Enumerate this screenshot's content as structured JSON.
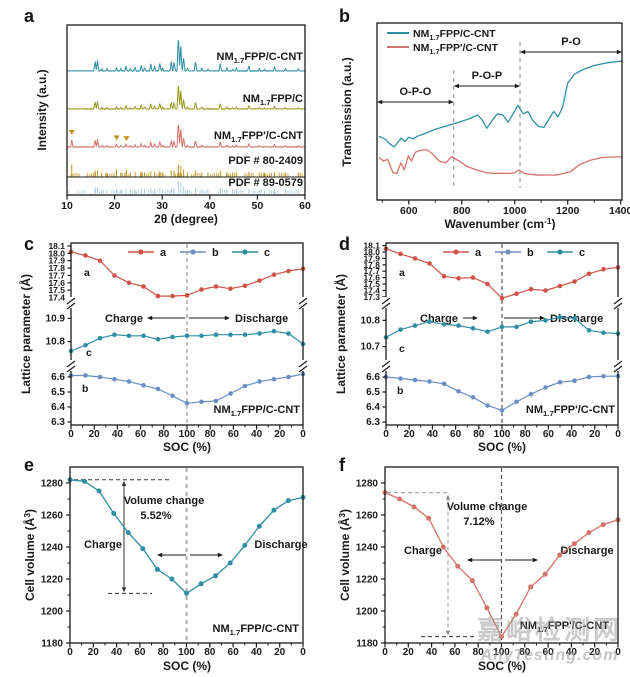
{
  "figure": {
    "panel_letters": [
      "a",
      "b",
      "c",
      "d",
      "e",
      "f"
    ],
    "watermark": {
      "line1": "嘉峪检测网",
      "line2": "AnyTesting.com"
    }
  },
  "colors": {
    "teal": "#2e8fa4",
    "teal_label": "#1b9ab0",
    "olive": "#9a9a21",
    "salmon": "#d4736b",
    "red": "#cf5349",
    "blue": "#6b8fc3",
    "gold": "#c3941c",
    "lightblue": "#aacbdd",
    "axis": "#1a1a1a",
    "gray_dash": "#999999",
    "black_dash": "#333333"
  },
  "chart_data": [
    {
      "id": "a",
      "type": "line",
      "variant": "xrd",
      "xlabel": "2θ (degree)",
      "ylabel": "Intensity (a.u.)",
      "xlim": [
        10,
        60
      ],
      "xticks": [
        10,
        20,
        30,
        40,
        50,
        60
      ],
      "traces": [
        {
          "label": "NM_{1.7}FPP/C-CNT",
          "color": "teal"
        },
        {
          "label": "NM_{1.7}FPP/C",
          "color": "olive"
        },
        {
          "label": "NM_{1.7}FPP'/C-CNT",
          "color": "salmon"
        }
      ],
      "impurity_peaks": [
        [
          11.0,
          0.5
        ],
        [
          20.4,
          0.2
        ],
        [
          22.5,
          0.16
        ]
      ],
      "peaks": [
        [
          15.9,
          0.3
        ],
        [
          16.4,
          0.32
        ],
        [
          17.3,
          0.1
        ],
        [
          18.4,
          0.1
        ],
        [
          20.4,
          0.12
        ],
        [
          21.3,
          0.1
        ],
        [
          22.4,
          0.16
        ],
        [
          23.3,
          0.1
        ],
        [
          24.3,
          0.14
        ],
        [
          25.6,
          0.18
        ],
        [
          26.3,
          0.12
        ],
        [
          27.6,
          0.22
        ],
        [
          28.4,
          0.16
        ],
        [
          29.5,
          0.25
        ],
        [
          30.1,
          0.12
        ],
        [
          31.9,
          0.3
        ],
        [
          32.5,
          0.28
        ],
        [
          33.4,
          1.0
        ],
        [
          33.9,
          0.75
        ],
        [
          34.5,
          0.4
        ],
        [
          35.3,
          0.12
        ],
        [
          37.0,
          0.3
        ],
        [
          38.3,
          0.12
        ],
        [
          39.6,
          0.08
        ],
        [
          42.2,
          0.25
        ],
        [
          43.6,
          0.12
        ],
        [
          44.8,
          0.08
        ],
        [
          45.6,
          0.12
        ],
        [
          48.2,
          0.18
        ],
        [
          50.4,
          0.1
        ],
        [
          51.5,
          0.08
        ],
        [
          53.6,
          0.14
        ],
        [
          55.9,
          0.1
        ],
        [
          58.6,
          0.1
        ]
      ],
      "references": [
        {
          "label": "PDF # 80-2409",
          "color": "gold"
        },
        {
          "label": "PDF # 89-0579",
          "color": "lightblue"
        }
      ]
    },
    {
      "id": "b",
      "type": "line",
      "variant": "ftir",
      "xlabel": "Wavenumber (cm^{-1})",
      "ylabel": "Transmission (a.u.)",
      "xlim": [
        480,
        1405
      ],
      "xticks": [
        600,
        800,
        1000,
        1200,
        1400
      ],
      "xticks_minor": [
        500,
        700,
        900,
        1100,
        1300
      ],
      "dividers": [
        770,
        1020
      ],
      "regions": [
        {
          "label": "O-P-O",
          "from": 480,
          "to": 770,
          "y": 102,
          "label_y": 95
        },
        {
          "label": "P-O-P",
          "from": 770,
          "to": 1020,
          "y": 86,
          "label_y": 79
        },
        {
          "label": "P-O",
          "from": 1020,
          "to": 1405,
          "y": 52,
          "label_y": 45
        }
      ],
      "series": [
        {
          "name": "NM_{1.7}FPP/C-CNT",
          "color": "teal",
          "points": [
            [
              487,
              0.36
            ],
            [
              510,
              0.345
            ],
            [
              530,
              0.315
            ],
            [
              545,
              0.3
            ],
            [
              558,
              0.325
            ],
            [
              572,
              0.35
            ],
            [
              585,
              0.33
            ],
            [
              600,
              0.355
            ],
            [
              615,
              0.345
            ],
            [
              632,
              0.36
            ],
            [
              660,
              0.375
            ],
            [
              700,
              0.4
            ],
            [
              745,
              0.42
            ],
            [
              790,
              0.44
            ],
            [
              830,
              0.46
            ],
            [
              860,
              0.48
            ],
            [
              878,
              0.45
            ],
            [
              895,
              0.405
            ],
            [
              915,
              0.45
            ],
            [
              935,
              0.487
            ],
            [
              955,
              0.48
            ],
            [
              975,
              0.44
            ],
            [
              995,
              0.49
            ],
            [
              1012,
              0.535
            ],
            [
              1032,
              0.487
            ],
            [
              1050,
              0.5
            ],
            [
              1068,
              0.45
            ],
            [
              1090,
              0.415
            ],
            [
              1110,
              0.41
            ],
            [
              1130,
              0.46
            ],
            [
              1147,
              0.5
            ],
            [
              1163,
              0.47
            ],
            [
              1180,
              0.52
            ],
            [
              1200,
              0.66
            ],
            [
              1225,
              0.71
            ],
            [
              1255,
              0.735
            ],
            [
              1300,
              0.76
            ],
            [
              1350,
              0.775
            ],
            [
              1405,
              0.785
            ]
          ]
        },
        {
          "name": "NM_{1.7}FPP'/C-CNT",
          "color": "salmon",
          "points": [
            [
              487,
              0.24
            ],
            [
              505,
              0.22
            ],
            [
              520,
              0.23
            ],
            [
              540,
              0.155
            ],
            [
              555,
              0.15
            ],
            [
              570,
              0.21
            ],
            [
              583,
              0.17
            ],
            [
              598,
              0.25
            ],
            [
              610,
              0.22
            ],
            [
              625,
              0.27
            ],
            [
              645,
              0.28
            ],
            [
              668,
              0.285
            ],
            [
              690,
              0.26
            ],
            [
              715,
              0.22
            ],
            [
              740,
              0.21
            ],
            [
              762,
              0.245
            ],
            [
              790,
              0.22
            ],
            [
              820,
              0.19
            ],
            [
              855,
              0.17
            ],
            [
              890,
              0.155
            ],
            [
              920,
              0.15
            ],
            [
              950,
              0.152
            ],
            [
              980,
              0.15
            ],
            [
              1000,
              0.153
            ],
            [
              1015,
              0.17
            ],
            [
              1035,
              0.15
            ],
            [
              1060,
              0.145
            ],
            [
              1090,
              0.14
            ],
            [
              1120,
              0.142
            ],
            [
              1150,
              0.14
            ],
            [
              1180,
              0.148
            ],
            [
              1210,
              0.16
            ],
            [
              1245,
              0.2
            ],
            [
              1285,
              0.225
            ],
            [
              1330,
              0.24
            ],
            [
              1405,
              0.245
            ]
          ]
        }
      ]
    },
    {
      "id": "c",
      "type": "line",
      "variant": "lattice",
      "xlabel": "SOC (%)",
      "ylabel": "Lattice parameter (Å)",
      "x_positions": [
        0,
        12.5,
        25,
        37.5,
        50,
        62.5,
        75,
        87.5,
        100,
        112.5,
        125,
        137.5,
        150,
        162.5,
        175,
        187.5,
        200
      ],
      "xticklabels": [
        "0",
        "20",
        "40",
        "60",
        "80",
        "100",
        "80",
        "60",
        "40",
        "20",
        "0"
      ],
      "legend": [
        {
          "label": "a",
          "color": "red"
        },
        {
          "label": "b",
          "color": "blue"
        },
        {
          "label": "c",
          "color": "teal"
        }
      ],
      "charge_label": "Charge",
      "discharge_label": "Discharge",
      "arrow_style": "outward",
      "sample": "NM_{1.7}FPP/C-CNT",
      "sample_color": "teal_label",
      "segments": [
        {
          "series": "a",
          "color": "red",
          "label_pos": [
            84,
            46
          ],
          "ylim": [
            17.34,
            18.14
          ],
          "yticks": [
            "17.4",
            "17.5",
            "17.6",
            "17.7",
            "17.8",
            "17.9",
            "18.0",
            "18.1"
          ],
          "values": [
            18.02,
            17.97,
            17.9,
            17.7,
            17.6,
            17.55,
            17.42,
            17.42,
            17.43,
            17.51,
            17.55,
            17.52,
            17.56,
            17.63,
            17.71,
            17.76,
            17.79
          ]
        },
        {
          "series": "c",
          "color": "teal",
          "label_pos": [
            86,
            126
          ],
          "ylim": [
            10.7,
            10.97
          ],
          "yticks": [
            "10.8",
            "10.9"
          ],
          "values": [
            10.76,
            10.785,
            10.815,
            10.83,
            10.825,
            10.825,
            10.81,
            10.82,
            10.825,
            10.825,
            10.83,
            10.83,
            10.83,
            10.835,
            10.845,
            10.835,
            10.79
          ]
        },
        {
          "series": "b",
          "color": "blue",
          "label_pos": [
            82,
            162
          ],
          "ylim": [
            6.28,
            6.68
          ],
          "yticks": [
            "6.3",
            "6.4",
            "6.5",
            "6.6"
          ],
          "values": [
            6.61,
            6.61,
            6.6,
            6.585,
            6.57,
            6.545,
            6.52,
            6.475,
            6.425,
            6.435,
            6.44,
            6.49,
            6.54,
            6.57,
            6.585,
            6.6,
            6.62
          ]
        }
      ]
    },
    {
      "id": "d",
      "type": "line",
      "variant": "lattice",
      "xlabel": "SOC (%)",
      "ylabel": "Lattice parameter (Å)",
      "x_positions": [
        0,
        12.5,
        25,
        37.5,
        50,
        62.5,
        75,
        87.5,
        100,
        112.5,
        125,
        137.5,
        150,
        162.5,
        175,
        187.5,
        200
      ],
      "xticklabels": [
        "0",
        "20",
        "40",
        "60",
        "80",
        "100",
        "80",
        "60",
        "40",
        "20",
        "0"
      ],
      "legend": [
        {
          "label": "a",
          "color": "red"
        },
        {
          "label": "b",
          "color": "blue"
        },
        {
          "label": "c",
          "color": "teal"
        }
      ],
      "charge_label": "Charge",
      "discharge_label": "Discharge",
      "arrow_style": "rightward",
      "sample": "NM_{1.7}FPP'/C-CNT",
      "sample_color": "salmon",
      "segments": [
        {
          "series": "a",
          "color": "red",
          "label_pos": [
            84,
            46
          ],
          "ylim": [
            17.22,
            18.14
          ],
          "yticks": [
            "17.3",
            "17.4",
            "17.5",
            "17.6",
            "17.7",
            "17.8",
            "17.9",
            "18.0",
            "18.1"
          ],
          "values": [
            18.05,
            17.97,
            17.9,
            17.82,
            17.62,
            17.59,
            17.6,
            17.5,
            17.28,
            17.35,
            17.42,
            17.4,
            17.47,
            17.54,
            17.66,
            17.73,
            17.76
          ]
        },
        {
          "series": "c",
          "color": "teal",
          "label_pos": [
            84,
            122
          ],
          "ylim": [
            10.63,
            10.87
          ],
          "yticks": [
            "10.7",
            "10.8"
          ],
          "values": [
            10.735,
            10.765,
            10.78,
            10.795,
            10.785,
            10.78,
            10.77,
            10.757,
            10.775,
            10.775,
            10.795,
            10.8,
            10.812,
            10.808,
            10.762,
            10.753,
            10.75
          ]
        },
        {
          "series": "b",
          "color": "blue",
          "label_pos": [
            82,
            164
          ],
          "ylim": [
            6.28,
            6.68
          ],
          "yticks": [
            "6.3",
            "6.4",
            "6.5",
            "6.6"
          ],
          "values": [
            6.6,
            6.59,
            6.58,
            6.57,
            6.555,
            6.505,
            6.465,
            6.41,
            6.378,
            6.435,
            6.485,
            6.53,
            6.565,
            6.575,
            6.6,
            6.605,
            6.605
          ]
        }
      ]
    },
    {
      "id": "e",
      "type": "line",
      "variant": "volume",
      "xlabel": "SOC (%)",
      "ylabel": "Cell volume (Å^{3})",
      "ylim": [
        1180,
        1290
      ],
      "yticks": [
        1180,
        1200,
        1220,
        1240,
        1260,
        1280
      ],
      "x_positions": [
        0,
        12.5,
        25,
        37.5,
        50,
        62.5,
        75,
        87.5,
        100,
        112.5,
        125,
        137.5,
        150,
        162.5,
        175,
        187.5,
        200
      ],
      "xticklabels": [
        "0",
        "20",
        "40",
        "60",
        "80",
        "100",
        "80",
        "60",
        "40",
        "20",
        "0"
      ],
      "color": "teal",
      "values": [
        1282,
        1281,
        1275,
        1261,
        1249,
        1239,
        1226,
        1220,
        1211,
        1217,
        1222,
        1230,
        1241,
        1253,
        1263,
        1269,
        1271
      ],
      "volume_change_label": "Volume change",
      "volume_change_value": "5.52%",
      "charge_label": "Charge",
      "discharge_label": "Discharge",
      "annotation_style": "black",
      "sample": "NM_{1.7}FPP/C-CNT",
      "sample_color": "teal_label"
    },
    {
      "id": "f",
      "type": "line",
      "variant": "volume",
      "xlabel": "SOC (%)",
      "ylabel": "Cell volume (Å^{3})",
      "ylim": [
        1180,
        1290
      ],
      "yticks": [
        1180,
        1200,
        1220,
        1240,
        1260,
        1280
      ],
      "x_positions": [
        0,
        12.5,
        25,
        37.5,
        50,
        62.5,
        75,
        87.5,
        100,
        112.5,
        125,
        137.5,
        150,
        162.5,
        175,
        187.5,
        200
      ],
      "xticklabels": [
        "0",
        "20",
        "40",
        "60",
        "80",
        "100",
        "80",
        "60",
        "40",
        "20",
        "0"
      ],
      "color": "salmon",
      "values": [
        1274,
        1270,
        1265,
        1258,
        1240,
        1228,
        1219,
        1202,
        1184,
        1198,
        1215,
        1223,
        1235,
        1242,
        1249,
        1254,
        1257
      ],
      "volume_change_label": "Volume change",
      "volume_change_value": "7.12%",
      "charge_label": "Charge",
      "discharge_label": "Discharge",
      "annotation_style": "gray",
      "sample": "NM_{1.7}FPP'/C-CNT",
      "sample_color": "salmon"
    }
  ]
}
